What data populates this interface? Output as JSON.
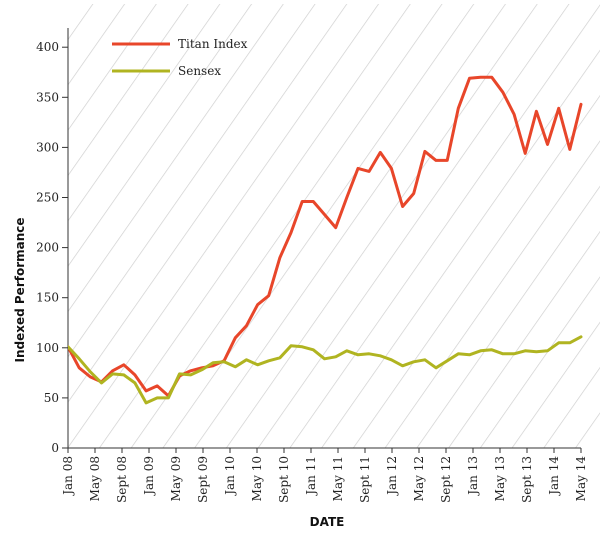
{
  "chart_data": {
    "type": "line",
    "title": "",
    "xlabel": "DATE",
    "ylabel": "Indexed Performance",
    "ylim": [
      0,
      420
    ],
    "yticks": [
      0,
      50,
      100,
      150,
      200,
      250,
      300,
      350,
      400
    ],
    "x_tick_labels": [
      "Jan 08",
      "May 08",
      "Sept 08",
      "Jan 09",
      "May 09",
      "Sept 09",
      "Jan 10",
      "May 10",
      "Sept 10",
      "Jan 11",
      "May 11",
      "Sept 11",
      "Jan 12",
      "May 12",
      "Sept 12",
      "Jan 13",
      "May 13",
      "Sept 13",
      "Jan 14",
      "May 14"
    ],
    "grid": false,
    "legend_position": "top-left",
    "series": [
      {
        "name": "Titan Index",
        "color": "#e8462a",
        "values": [
          101,
          80,
          71,
          66,
          77,
          83,
          73,
          57,
          62,
          52,
          72,
          77,
          80,
          82,
          87,
          110,
          122,
          143,
          152,
          190,
          215,
          246,
          246,
          233,
          220,
          250,
          279,
          276,
          295,
          279,
          241,
          254,
          296,
          287,
          287,
          339,
          369,
          370,
          370,
          355,
          333,
          294,
          336,
          303,
          339,
          298,
          343
        ]
      },
      {
        "name": "Sensex",
        "color": "#b0b421",
        "values": [
          101,
          89,
          76,
          65,
          74,
          73,
          65,
          45,
          50,
          50,
          74,
          73,
          78,
          85,
          86,
          81,
          88,
          83,
          87,
          90,
          102,
          101,
          98,
          89,
          91,
          97,
          93,
          94,
          92,
          88,
          82,
          86,
          88,
          80,
          87,
          94,
          93,
          97,
          98,
          94,
          94,
          97,
          96,
          97,
          105,
          105,
          111
        ]
      }
    ]
  }
}
